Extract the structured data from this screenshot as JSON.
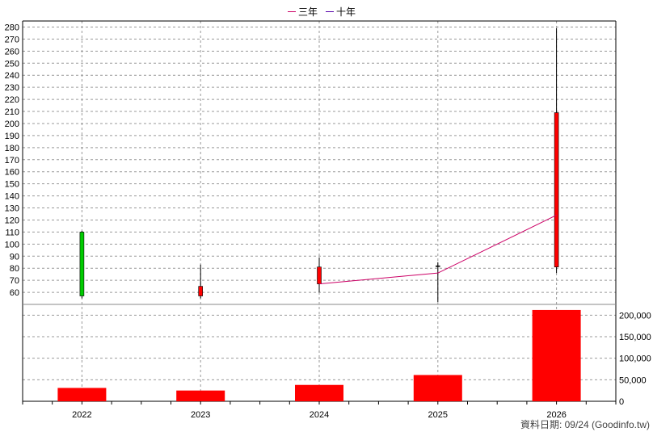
{
  "chart_data": {
    "type": "candlestick-with-volume",
    "legend": [
      {
        "name": "三年",
        "color": "#cc0066"
      },
      {
        "name": "十年",
        "color": "#5500aa"
      }
    ],
    "categories": [
      "2022",
      "2023",
      "2024",
      "2025",
      "2026"
    ],
    "price": {
      "ylim": [
        50,
        285
      ],
      "yticks": [
        60,
        70,
        80,
        90,
        100,
        110,
        120,
        130,
        140,
        150,
        160,
        170,
        180,
        190,
        200,
        210,
        220,
        230,
        240,
        250,
        260,
        270,
        280
      ],
      "candles": [
        {
          "year": "2022",
          "open": 110,
          "close": 57,
          "high": 111,
          "low": 55,
          "color": "#00cc00"
        },
        {
          "year": "2023",
          "open": 57,
          "close": 65,
          "high": 83,
          "low": 55,
          "color": "#ff0000"
        },
        {
          "year": "2024",
          "open": 67,
          "close": 81,
          "high": 89,
          "low": 60,
          "color": "#ff0000"
        },
        {
          "year": "2025",
          "open": 82,
          "close": 82,
          "high": 85,
          "low": 52,
          "color": "#000000"
        },
        {
          "year": "2026",
          "open": 81,
          "close": 209,
          "high": 279,
          "low": 76,
          "color": "#ff0000"
        }
      ],
      "line_三年": [
        {
          "year": "2024",
          "value": 67
        },
        {
          "year": "2025",
          "value": 76
        },
        {
          "year": "2026",
          "value": 124
        }
      ]
    },
    "volume": {
      "ylim": [
        0,
        225000
      ],
      "yticks": [
        0,
        50000,
        100000,
        150000,
        200000
      ],
      "ytick_labels": [
        "0",
        "50,000",
        "100,000",
        "150,000",
        "200,000"
      ],
      "values": [
        31000,
        25000,
        38000,
        61000,
        212000
      ],
      "color": "#ff0000"
    },
    "grid": true
  },
  "footer": "資料日期: 09/24  (Goodinfo.tw)"
}
